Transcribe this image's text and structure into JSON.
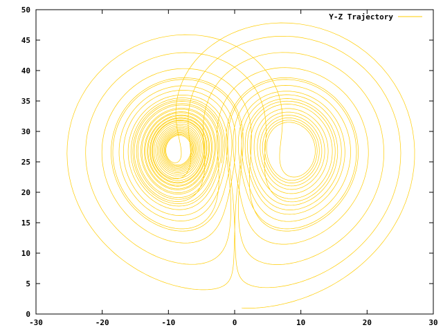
{
  "chart_data": {
    "type": "line",
    "title": "",
    "xlabel": "",
    "ylabel": "",
    "xlim": [
      -30,
      30
    ],
    "ylim": [
      0,
      50
    ],
    "x_ticks": [
      -30,
      -20,
      -10,
      0,
      10,
      20,
      30
    ],
    "y_ticks": [
      0,
      5,
      10,
      15,
      20,
      25,
      30,
      35,
      40,
      45,
      50
    ],
    "x_tick_labels": [
      "-30",
      "-20",
      "-10",
      "0",
      "10",
      "20",
      "30"
    ],
    "y_tick_labels": [
      "0",
      "5",
      "10",
      "15",
      "20",
      "25",
      "30",
      "35",
      "40",
      "45",
      "50"
    ],
    "grid": false,
    "legend_position": "top-right",
    "series": [
      {
        "name": "Y-Z Trajectory",
        "color": "#ffcc00",
        "generator": "lorenz",
        "params": {
          "sigma": 10,
          "rho": 28,
          "beta": 2.6667
        },
        "initial_point": {
          "y": 1,
          "z": 1
        }
      }
    ]
  }
}
